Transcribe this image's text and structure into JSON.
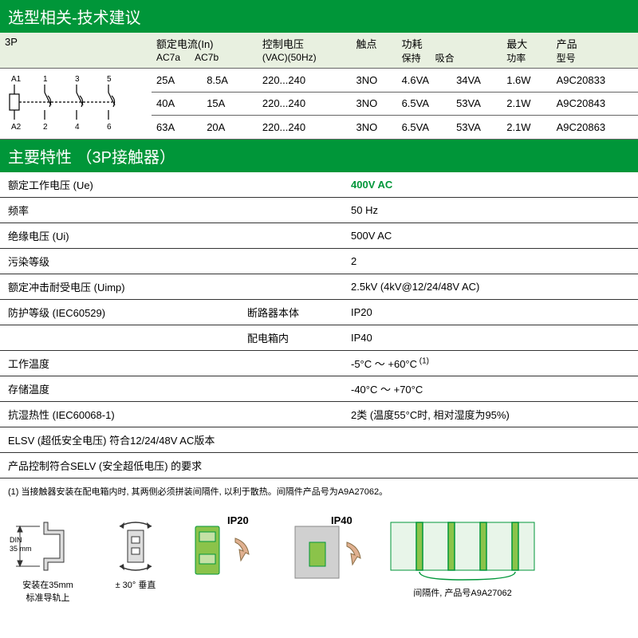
{
  "header1": "选型相关-技术建议",
  "t1": {
    "cols": [
      "3P",
      "额定电流(In)",
      "控制电压",
      "触点",
      "功耗",
      "最大",
      "产品"
    ],
    "sub1": [
      "AC7a",
      "AC7b"
    ],
    "sub2": "(VAC)(50Hz)",
    "sub3": [
      "保持",
      "吸合"
    ],
    "sub4": "功率",
    "sub5": "型号",
    "rows": [
      [
        "25A",
        "8.5A",
        "220...240",
        "3NO",
        "4.6VA",
        "34VA",
        "1.6W",
        "A9C20833"
      ],
      [
        "40A",
        "15A",
        "220...240",
        "3NO",
        "6.5VA",
        "53VA",
        "2.1W",
        "A9C20843"
      ],
      [
        "63A",
        "20A",
        "220...240",
        "3NO",
        "6.5VA",
        "53VA",
        "2.1W",
        "A9C20863"
      ]
    ]
  },
  "header2": "主要特性 （3P接触器）",
  "specs": [
    {
      "l": "额定工作电压 (Ue)",
      "v": "400V AC",
      "g": true
    },
    {
      "l": "频率",
      "v": "50 Hz"
    },
    {
      "l": "绝缘电压 (Ui)",
      "v": "500V AC"
    },
    {
      "l": "污染等级",
      "v": "2"
    },
    {
      "l": "额定冲击耐受电压 (Uimp)",
      "v": "2.5kV (4kV@12/24/48V AC)"
    },
    {
      "l": "防护等级 (IEC60529)",
      "s": "断路器本体",
      "v": "IP20"
    },
    {
      "l": "",
      "s": "配电箱内",
      "v": "IP40"
    },
    {
      "l": "工作温度",
      "v": "-5°C ～ +60°C",
      "sup": "(1)"
    },
    {
      "l": "存储温度",
      "v": "-40°C ～ +70°C"
    },
    {
      "l": "抗湿热性 (IEC60068-1)",
      "v": "2类 (温度55°C时, 相对湿度为95%)"
    },
    {
      "l": "ELSV (超低安全电压) 符合12/24/48V AC版本",
      "full": true
    },
    {
      "l": "产品控制符合SELV (安全超低电压) 的要求",
      "full": true
    }
  ],
  "note": "(1) 当接触器安装在配电箱内时, 其两侧必须拼装间隔件, 以利于散热。间隔件产品号为A9A27062。",
  "ill": {
    "din": "DIN\n35 mm",
    "c1": "安装在35mm\n标准导轨上",
    "c2": "± 30° 垂直",
    "ip20": "IP20",
    "ip40": "IP40",
    "c5": "间隔件, 产品号A9A27062"
  },
  "colors": {
    "brand": "#009639",
    "lightgreen": "#e8f0e0",
    "gray": "#999"
  }
}
